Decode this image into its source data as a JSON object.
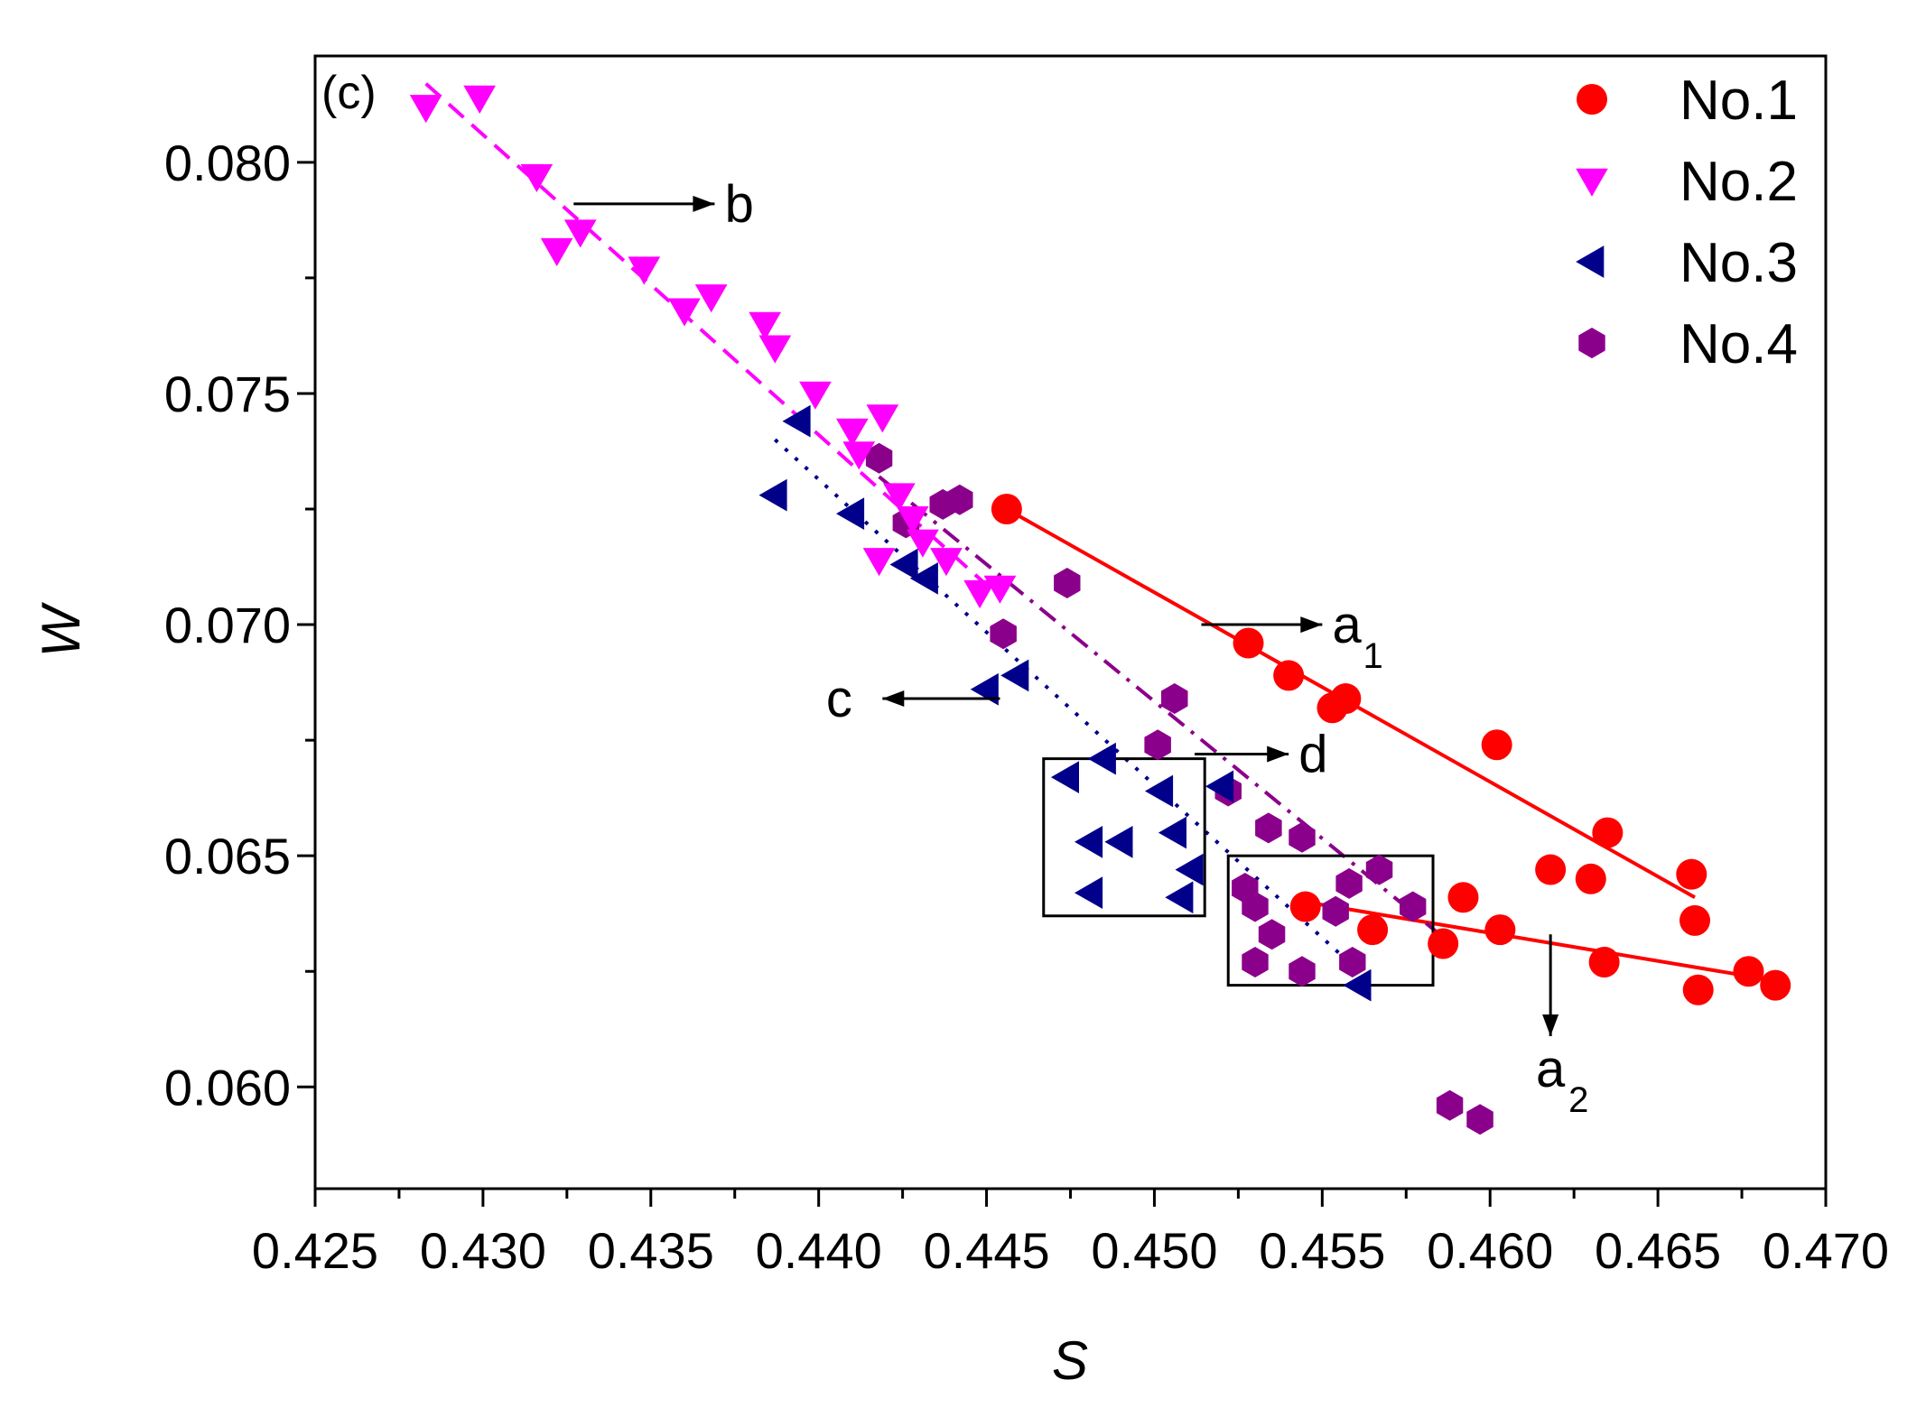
{
  "chart_data": {
    "type": "scatter",
    "panel_label": "(c)",
    "title": "",
    "xlabel": "S",
    "ylabel": "W",
    "xlim": [
      0.425,
      0.47
    ],
    "ylim": [
      0.0578,
      0.0823
    ],
    "x_ticks": [
      "0.425",
      "0.430",
      "0.435",
      "0.440",
      "0.445",
      "0.450",
      "0.455",
      "0.460",
      "0.465",
      "0.470"
    ],
    "y_ticks": [
      "0.060",
      "0.065",
      "0.070",
      "0.075",
      "0.080"
    ],
    "grid": false,
    "legend_position": "top-right",
    "colors": {
      "No.1": "#ff0000",
      "No.2": "#ff00ff",
      "No.3": "#00008b",
      "No.4": "#8b008b",
      "axis": "#000000"
    },
    "series": [
      {
        "name": "No.1",
        "marker": "circle",
        "x": [
          0.4456,
          0.4528,
          0.454,
          0.4553,
          0.4557,
          0.4602,
          0.4618,
          0.463,
          0.4635,
          0.466,
          0.4661,
          0.4545,
          0.4565,
          0.4586,
          0.4592,
          0.4603,
          0.4634,
          0.4662,
          0.4677,
          0.4685
        ],
        "y": [
          0.0725,
          0.0696,
          0.0689,
          0.0682,
          0.0684,
          0.0674,
          0.0647,
          0.0645,
          0.0655,
          0.0646,
          0.0636,
          0.0639,
          0.0634,
          0.0631,
          0.0641,
          0.0634,
          0.0627,
          0.0621,
          0.0625,
          0.0622
        ]
      },
      {
        "name": "No.2",
        "marker": "triangle-down",
        "x": [
          0.4283,
          0.4299,
          0.4316,
          0.4322,
          0.4329,
          0.4348,
          0.436,
          0.4368,
          0.4384,
          0.4387,
          0.4399,
          0.441,
          0.4412,
          0.4419,
          0.4418,
          0.4424,
          0.4428,
          0.4431,
          0.4438,
          0.4448,
          0.4454
        ],
        "y": [
          0.0812,
          0.0814,
          0.0797,
          0.0781,
          0.0785,
          0.0777,
          0.0768,
          0.0771,
          0.0765,
          0.076,
          0.075,
          0.0742,
          0.0737,
          0.0745,
          0.0714,
          0.0728,
          0.0723,
          0.0718,
          0.0714,
          0.0707,
          0.0708
        ]
      },
      {
        "name": "No.3",
        "marker": "triangle-left",
        "x": [
          0.4387,
          0.4394,
          0.441,
          0.4426,
          0.4432,
          0.445,
          0.4459,
          0.4474,
          0.4485,
          0.4481,
          0.449,
          0.4481,
          0.4502,
          0.4506,
          0.4511,
          0.4508,
          0.452,
          0.4561
        ],
        "y": [
          0.0728,
          0.0744,
          0.0724,
          0.0713,
          0.071,
          0.0686,
          0.0689,
          0.0667,
          0.0671,
          0.0653,
          0.0653,
          0.0642,
          0.0664,
          0.0655,
          0.0647,
          0.0641,
          0.0665,
          0.0622
        ]
      },
      {
        "name": "No.4",
        "marker": "hexagon",
        "x": [
          0.4418,
          0.4426,
          0.4437,
          0.4442,
          0.4455,
          0.4474,
          0.4501,
          0.4506,
          0.4522,
          0.4534,
          0.4544,
          0.4527,
          0.453,
          0.4535,
          0.453,
          0.4544,
          0.4554,
          0.4558,
          0.4567,
          0.4577,
          0.4559,
          0.4588,
          0.4597
        ],
        "y": [
          0.0736,
          0.0722,
          0.0726,
          0.0727,
          0.0698,
          0.0709,
          0.0674,
          0.0684,
          0.0664,
          0.0656,
          0.0654,
          0.0643,
          0.0639,
          0.0633,
          0.0627,
          0.0625,
          0.0638,
          0.0644,
          0.0647,
          0.0639,
          0.0627,
          0.0596,
          0.0593
        ]
      }
    ],
    "fit_lines": [
      {
        "label": "a1",
        "series": "No.1",
        "style": "solid",
        "color": "#ff0000",
        "x": [
          0.4456,
          0.4661
        ],
        "y": [
          0.0725,
          0.0641
        ]
      },
      {
        "label": "a2",
        "series": "No.1",
        "style": "solid",
        "color": "#ff0000",
        "x": [
          0.4545,
          0.4685
        ],
        "y": [
          0.064,
          0.0623
        ]
      },
      {
        "label": "b",
        "series": "No.2",
        "style": "dash",
        "color": "#ff00ff",
        "x": [
          0.4283,
          0.4454
        ],
        "y": [
          0.0817,
          0.0706
        ]
      },
      {
        "label": "c",
        "series": "No.3",
        "style": "dot",
        "color": "#00008b",
        "x": [
          0.4387,
          0.4561
        ],
        "y": [
          0.074,
          0.0625
        ]
      },
      {
        "label": "d",
        "series": "No.4",
        "style": "dashdot",
        "color": "#8b008b",
        "x": [
          0.4418,
          0.4585
        ],
        "y": [
          0.0732,
          0.0633
        ]
      }
    ],
    "annotations": [
      {
        "text": "b",
        "sub": "",
        "direction": "right",
        "from": [
          0.4327,
          0.0791
        ],
        "to": [
          0.4369,
          0.0791
        ],
        "text_at": [
          0.4372,
          0.0791
        ]
      },
      {
        "text": "a",
        "sub": "1",
        "direction": "right",
        "from": [
          0.4514,
          0.07
        ],
        "to": [
          0.455,
          0.07
        ],
        "text_at": [
          0.4553,
          0.07
        ]
      },
      {
        "text": "c",
        "sub": "",
        "direction": "left",
        "from": [
          0.4454,
          0.0684
        ],
        "to": [
          0.4419,
          0.0684
        ],
        "text_at": [
          0.441,
          0.0684
        ]
      },
      {
        "text": "d",
        "sub": "",
        "direction": "right",
        "from": [
          0.4512,
          0.0672
        ],
        "to": [
          0.454,
          0.0672
        ],
        "text_at": [
          0.4543,
          0.0672
        ]
      },
      {
        "text": "a",
        "sub": "2",
        "direction": "down",
        "from": [
          0.4618,
          0.0633
        ],
        "to": [
          0.4618,
          0.0611
        ],
        "text_at": [
          0.4618,
          0.0604
        ]
      }
    ],
    "boxes": [
      {
        "x": [
          0.4467,
          0.4515
        ],
        "y": [
          0.0637,
          0.0671
        ]
      },
      {
        "x": [
          0.4522,
          0.4583
        ],
        "y": [
          0.0622,
          0.065
        ]
      }
    ]
  }
}
